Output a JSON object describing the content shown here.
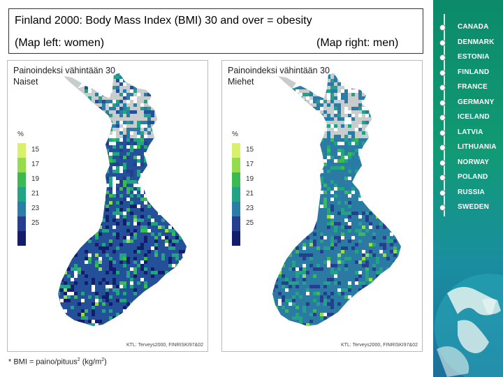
{
  "header": {
    "title": "Finland 2000: Body Mass Index (BMI) 30 and over = obesity",
    "left_caption": "(Map left: women)",
    "right_caption": "(Map right: men)"
  },
  "maps": [
    {
      "title_line1": "Painoindeksi vähintään 30",
      "title_line2": "Naiset",
      "credit": "KTL: Terveys2000, FINRISKI97&02"
    },
    {
      "title_line1": "Painoindeksi vähintään 30",
      "title_line2": "Miehet",
      "credit": "KTL: Terveys2000, FINRISKI97&02"
    }
  ],
  "legend": {
    "unit": "%",
    "items": [
      {
        "label": "15",
        "color": "#d9f06a"
      },
      {
        "label": "17",
        "color": "#93dc4c"
      },
      {
        "label": "19",
        "color": "#3cba52"
      },
      {
        "label": "21",
        "color": "#23a386"
      },
      {
        "label": "23",
        "color": "#2a7da7"
      },
      {
        "label": "25",
        "color": "#253e8f"
      },
      {
        "label": "",
        "color": "#141c6e"
      }
    ]
  },
  "footnote": {
    "prefix": "* BMI = paino/pituus",
    "sup": "2",
    "suffix": " (kg/m",
    "sup2": "2",
    "end": ")"
  },
  "sidebar": {
    "items": [
      {
        "label": "CANADA"
      },
      {
        "label": "DENMARK"
      },
      {
        "label": "ESTONIA"
      },
      {
        "label": "FINLAND"
      },
      {
        "label": "FRANCE"
      },
      {
        "label": "GERMANY"
      },
      {
        "label": "ICELAND"
      },
      {
        "label": "LATVIA"
      },
      {
        "label": "LITHUANIA"
      },
      {
        "label": "NORWAY"
      },
      {
        "label": "POLAND"
      },
      {
        "label": "RUSSIA"
      },
      {
        "label": "SWEDEN"
      }
    ]
  },
  "colors": {
    "women_main": "#24509a",
    "men_main": "#2a7aa3",
    "north_gray": "#c9cccc"
  }
}
